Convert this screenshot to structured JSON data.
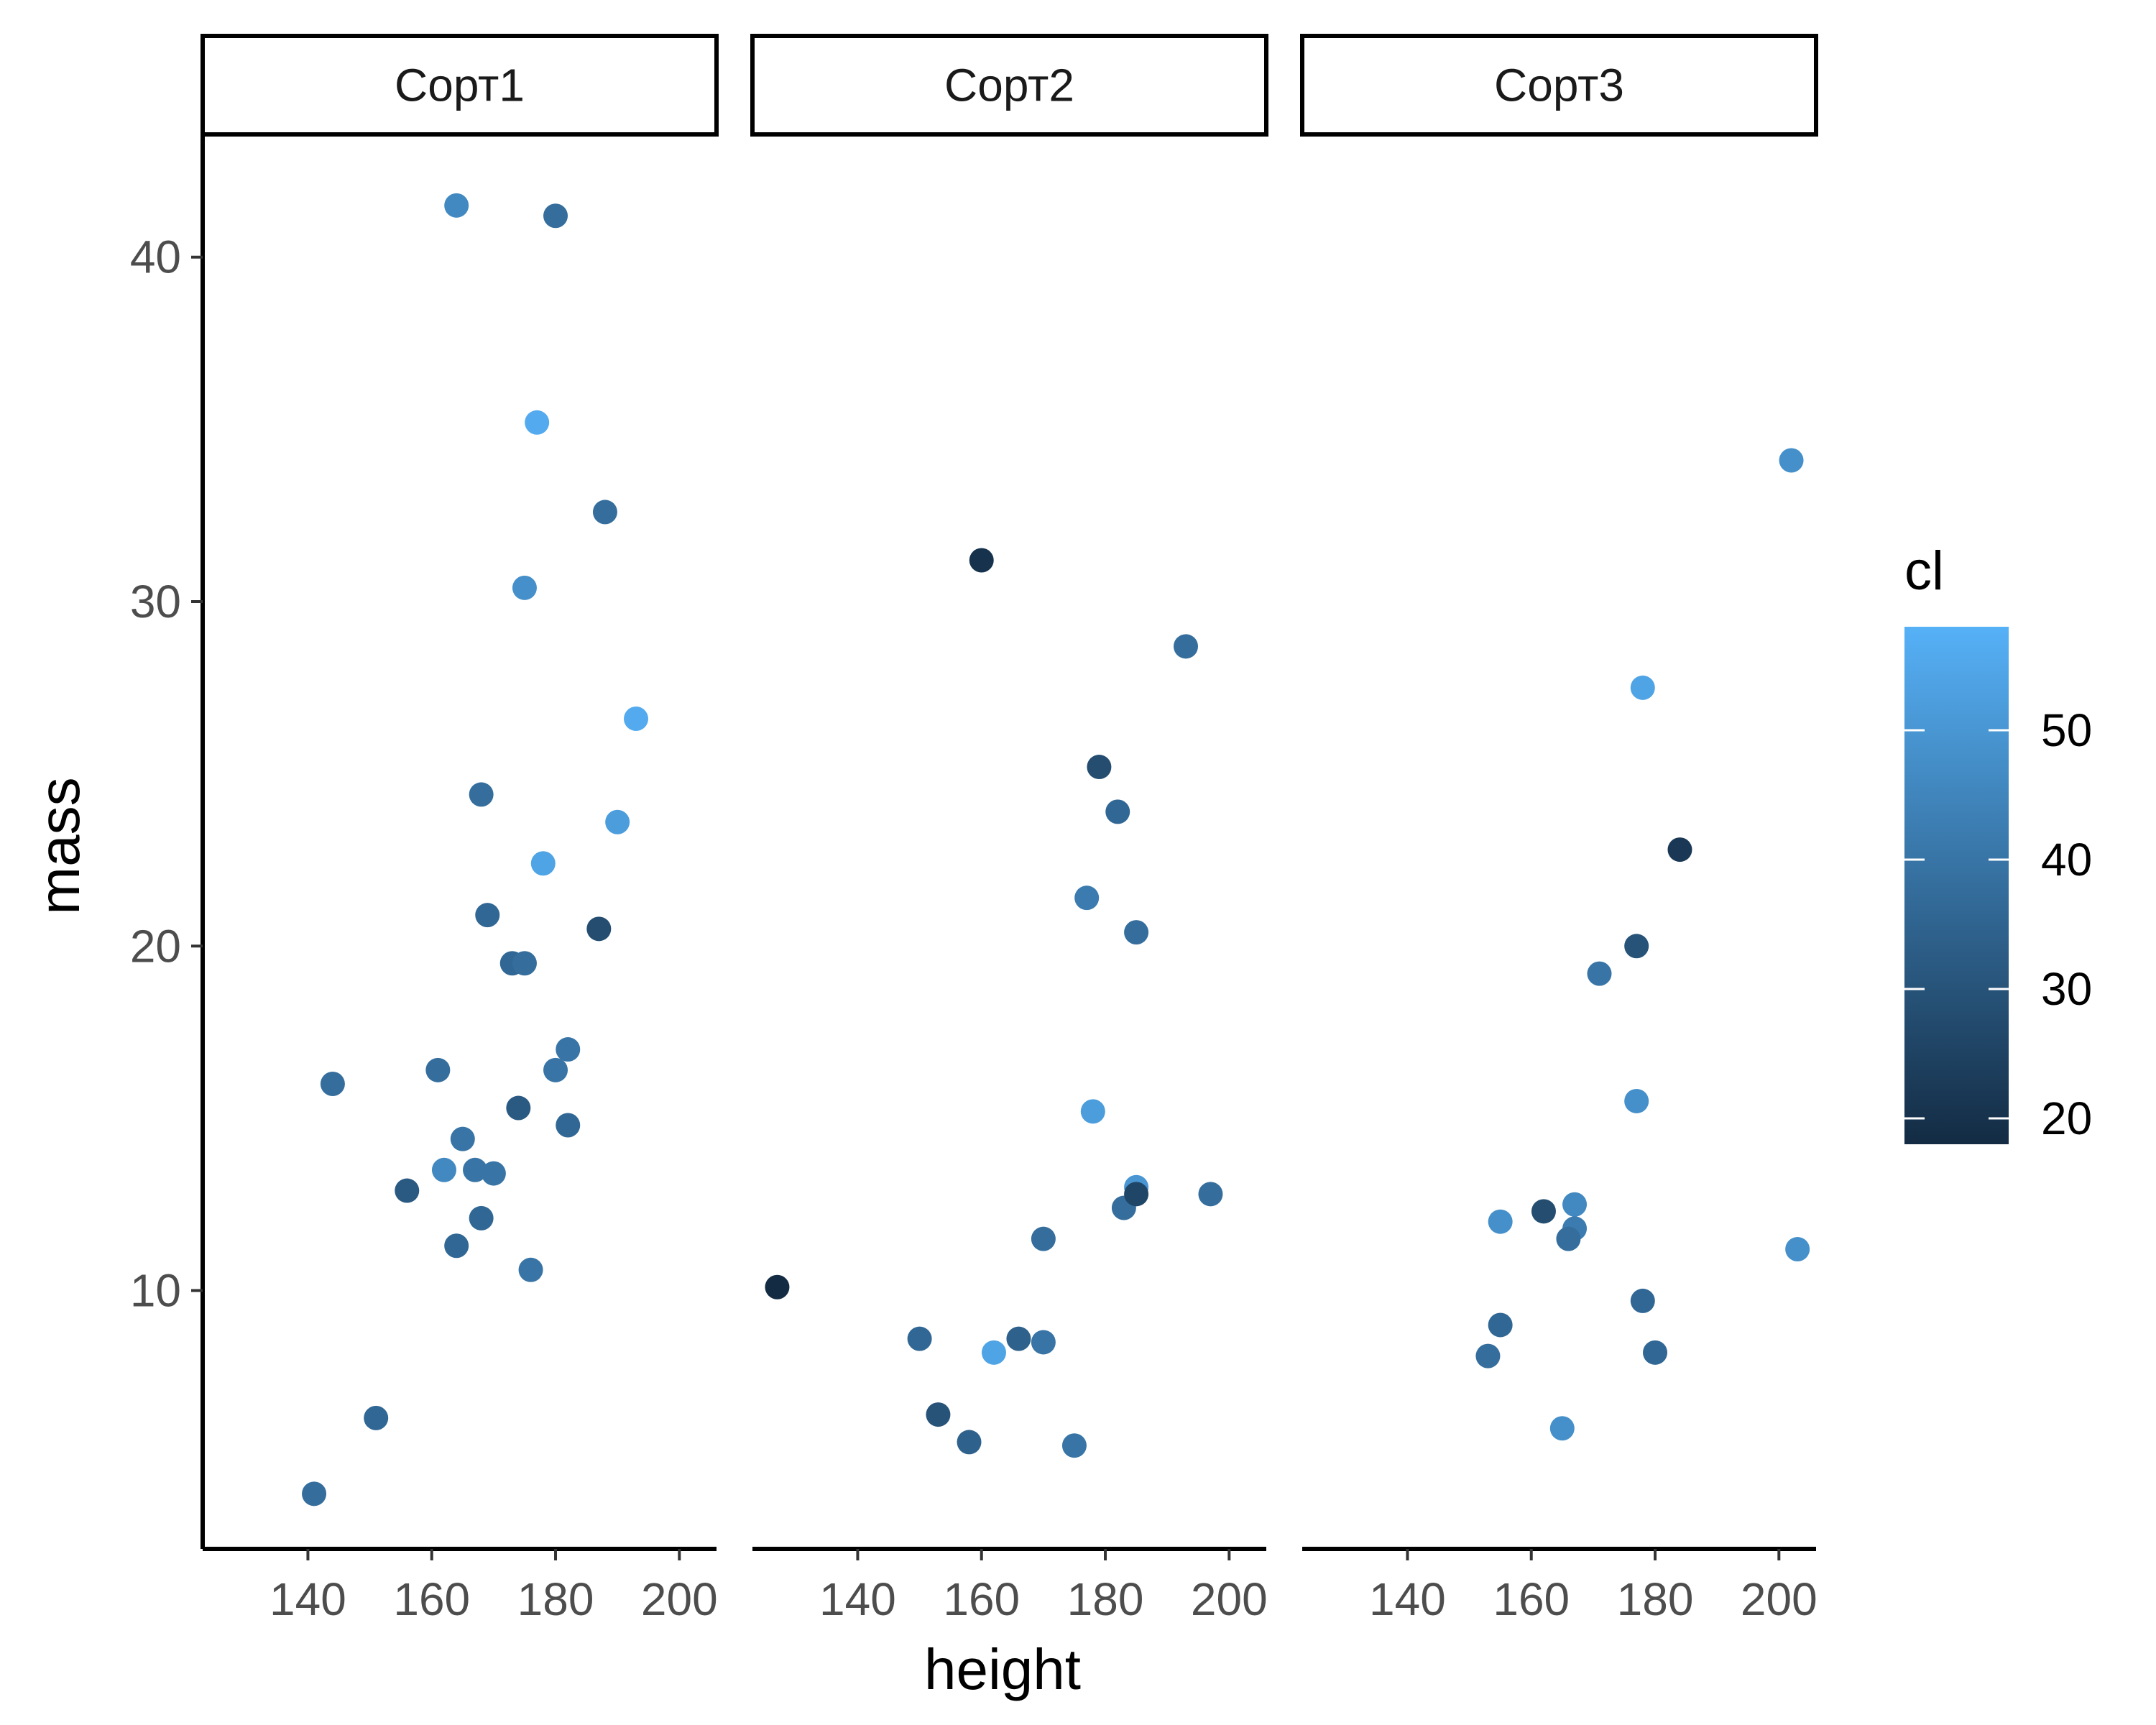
{
  "chart_data": {
    "type": "scatter",
    "xlabel": "height",
    "ylabel": "mass",
    "xlim": [
      123,
      206
    ],
    "ylim": [
      2.5,
      43.5
    ],
    "x_ticks": [
      140,
      160,
      180,
      200
    ],
    "y_ticks": [
      10,
      20,
      30,
      40
    ],
    "grid": false,
    "color_legend": {
      "title": "cl",
      "range": [
        18,
        58
      ],
      "ticks": [
        20,
        30,
        40,
        50
      ],
      "low_color": "#132B43",
      "high_color": "#56B1F7",
      "placement": "right"
    },
    "panels": [
      {
        "label": "Сорт1",
        "points": [
          {
            "x": 164,
            "y": 41.5,
            "cl": 46
          },
          {
            "x": 180,
            "y": 41.2,
            "cl": 38
          },
          {
            "x": 177,
            "y": 35.2,
            "cl": 56
          },
          {
            "x": 188,
            "y": 32.6,
            "cl": 38
          },
          {
            "x": 175,
            "y": 30.4,
            "cl": 48
          },
          {
            "x": 193,
            "y": 26.6,
            "cl": 56
          },
          {
            "x": 168,
            "y": 24.4,
            "cl": 38
          },
          {
            "x": 190,
            "y": 23.6,
            "cl": 52
          },
          {
            "x": 178,
            "y": 22.4,
            "cl": 54
          },
          {
            "x": 169,
            "y": 20.9,
            "cl": 36
          },
          {
            "x": 187,
            "y": 20.5,
            "cl": 28
          },
          {
            "x": 173,
            "y": 19.5,
            "cl": 36
          },
          {
            "x": 175,
            "y": 19.5,
            "cl": 38
          },
          {
            "x": 182,
            "y": 17.0,
            "cl": 40
          },
          {
            "x": 144,
            "y": 16.0,
            "cl": 38
          },
          {
            "x": 161,
            "y": 16.4,
            "cl": 38
          },
          {
            "x": 180,
            "y": 16.4,
            "cl": 40
          },
          {
            "x": 174,
            "y": 15.3,
            "cl": 32
          },
          {
            "x": 182,
            "y": 14.8,
            "cl": 36
          },
          {
            "x": 165,
            "y": 14.4,
            "cl": 40
          },
          {
            "x": 162,
            "y": 13.5,
            "cl": 46
          },
          {
            "x": 167,
            "y": 13.5,
            "cl": 40
          },
          {
            "x": 170,
            "y": 13.4,
            "cl": 40
          },
          {
            "x": 156,
            "y": 12.9,
            "cl": 32
          },
          {
            "x": 168,
            "y": 12.1,
            "cl": 36
          },
          {
            "x": 164,
            "y": 11.3,
            "cl": 36
          },
          {
            "x": 176,
            "y": 10.6,
            "cl": 40
          },
          {
            "x": 151,
            "y": 6.3,
            "cl": 36
          },
          {
            "x": 141,
            "y": 4.1,
            "cl": 38
          }
        ]
      },
      {
        "label": "Сорт2",
        "points": [
          {
            "x": 160,
            "y": 31.2,
            "cl": 20
          },
          {
            "x": 193,
            "y": 28.7,
            "cl": 38
          },
          {
            "x": 179,
            "y": 25.2,
            "cl": 28
          },
          {
            "x": 182,
            "y": 23.9,
            "cl": 36
          },
          {
            "x": 177,
            "y": 21.4,
            "cl": 42
          },
          {
            "x": 185,
            "y": 20.4,
            "cl": 38
          },
          {
            "x": 178,
            "y": 15.2,
            "cl": 52
          },
          {
            "x": 185,
            "y": 13.0,
            "cl": 50
          },
          {
            "x": 197,
            "y": 12.8,
            "cl": 38
          },
          {
            "x": 183,
            "y": 12.4,
            "cl": 38
          },
          {
            "x": 185,
            "y": 12.8,
            "cl": 26
          },
          {
            "x": 170,
            "y": 11.5,
            "cl": 38
          },
          {
            "x": 127,
            "y": 10.1,
            "cl": 18
          },
          {
            "x": 150,
            "y": 8.6,
            "cl": 36
          },
          {
            "x": 166,
            "y": 8.6,
            "cl": 34
          },
          {
            "x": 170,
            "y": 8.5,
            "cl": 40
          },
          {
            "x": 162,
            "y": 8.2,
            "cl": 54
          },
          {
            "x": 153,
            "y": 6.4,
            "cl": 30
          },
          {
            "x": 158,
            "y": 5.6,
            "cl": 34
          },
          {
            "x": 175,
            "y": 5.5,
            "cl": 40
          }
        ]
      },
      {
        "label": "Сорт3",
        "points": [
          {
            "x": 202,
            "y": 34.1,
            "cl": 48
          },
          {
            "x": 178,
            "y": 27.5,
            "cl": 54
          },
          {
            "x": 184,
            "y": 22.8,
            "cl": 22
          },
          {
            "x": 177,
            "y": 20.0,
            "cl": 30
          },
          {
            "x": 171,
            "y": 19.2,
            "cl": 40
          },
          {
            "x": 177,
            "y": 15.5,
            "cl": 48
          },
          {
            "x": 162,
            "y": 12.3,
            "cl": 28
          },
          {
            "x": 167,
            "y": 12.5,
            "cl": 46
          },
          {
            "x": 155,
            "y": 12.0,
            "cl": 48
          },
          {
            "x": 167,
            "y": 11.8,
            "cl": 42
          },
          {
            "x": 166,
            "y": 11.5,
            "cl": 38
          },
          {
            "x": 203,
            "y": 11.2,
            "cl": 48
          },
          {
            "x": 178,
            "y": 9.7,
            "cl": 36
          },
          {
            "x": 155,
            "y": 9.0,
            "cl": 36
          },
          {
            "x": 153,
            "y": 8.1,
            "cl": 38
          },
          {
            "x": 180,
            "y": 8.2,
            "cl": 36
          },
          {
            "x": 165,
            "y": 6.0,
            "cl": 48
          }
        ]
      }
    ]
  }
}
